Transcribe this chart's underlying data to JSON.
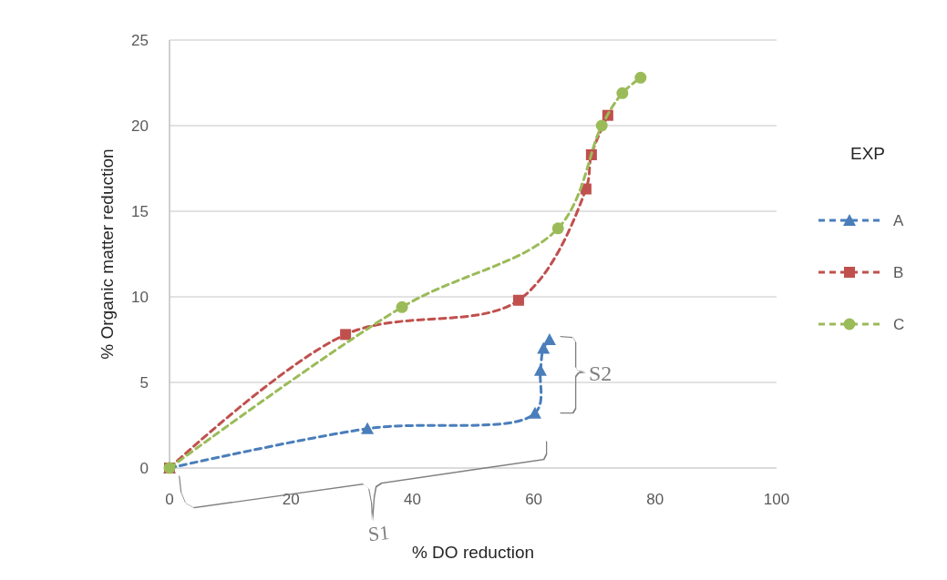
{
  "chart_data": {
    "type": "line",
    "xlabel": "% DO reduction",
    "ylabel": "% Organic matter reduction",
    "legend_title": "EXP",
    "xlim": [
      0,
      100
    ],
    "xticks": [
      0,
      20,
      40,
      60,
      80,
      100
    ],
    "ylim": [
      0,
      25
    ],
    "yticks": [
      0,
      5,
      10,
      15,
      20,
      25
    ],
    "grid": "y",
    "legend": "right",
    "line_style": "dashed",
    "series": [
      {
        "name": "A",
        "color": "#4a7ebb",
        "marker": "triangle",
        "x": [
          0,
          32.6,
          60.2,
          61.1,
          61.6,
          62.6
        ],
        "values": [
          0,
          2.3,
          3.2,
          5.7,
          7.0,
          7.5
        ]
      },
      {
        "name": "B",
        "color": "#c0504d",
        "marker": "square",
        "x": [
          0,
          29.0,
          57.5,
          68.6,
          69.5,
          72.2
        ],
        "values": [
          0,
          7.8,
          9.8,
          16.3,
          18.3,
          20.6
        ]
      },
      {
        "name": "C",
        "color": "#9bbb59",
        "marker": "circle",
        "x": [
          0,
          38.3,
          64.0,
          71.2,
          74.6,
          77.6
        ],
        "values": [
          0,
          9.4,
          14.0,
          20.0,
          21.9,
          22.8
        ]
      }
    ],
    "annotations": [
      "S1",
      "S2"
    ]
  }
}
